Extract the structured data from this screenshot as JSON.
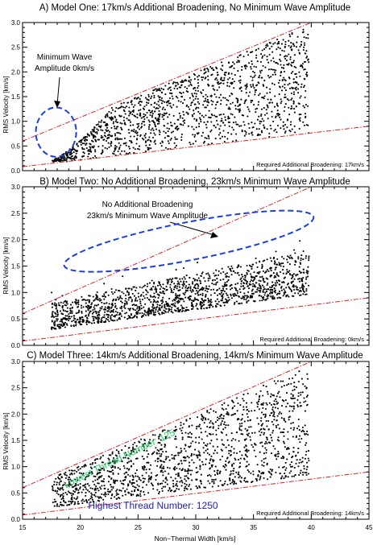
{
  "figure": {
    "xlabel": "Non−Thermal Width [km/s]",
    "x_ticks": [
      "15",
      "20",
      "25",
      "30",
      "35",
      "40",
      "45"
    ]
  },
  "chart_data": [
    {
      "type": "scatter",
      "title": "A) Model One: 17km/s Additional Broadening, No Minimum Wave Amplitude",
      "xlabel": "Non−Thermal Width [km/s]",
      "ylabel": "RMS Velocity [km/s]",
      "xlim": [
        15,
        45
      ],
      "ylim": [
        0,
        3
      ],
      "x_ticks": [
        15,
        20,
        25,
        30,
        35,
        40,
        45
      ],
      "y_ticks": [
        "0.0",
        "0.5",
        "1.0",
        "1.5",
        "2.0",
        "2.5",
        "3.0"
      ],
      "points_x_range": [
        17.5,
        39.8
      ],
      "envelope_upper": {
        "x": [
          15,
          40
        ],
        "y": [
          0.6,
          3.0
        ]
      },
      "envelope_lower": {
        "x": [
          15,
          45
        ],
        "y": [
          0.08,
          0.9
        ]
      },
      "annotation": "Minimum Wave\nAmplitude 0km/s",
      "note": "Required Additional Broadening: 17km/s",
      "ellipse": {
        "cx": 17.9,
        "cy": 0.78,
        "rx": 1.75,
        "ry": 0.5,
        "angle": 0
      }
    },
    {
      "type": "scatter",
      "title": "B) Model Two: No Additional Broadening, 23km/s Minimum Wave Amplitude",
      "xlabel": "Non−Thermal Width [km/s]",
      "ylabel": "RMS Velocity [km/s]",
      "xlim": [
        15,
        45
      ],
      "ylim": [
        0,
        3
      ],
      "x_ticks": [
        15,
        20,
        25,
        30,
        35,
        40,
        45
      ],
      "y_ticks": [
        "0.0",
        "0.5",
        "1.0",
        "1.5",
        "2.0",
        "2.5",
        "3.0"
      ],
      "points_x_range": [
        17.5,
        39.8
      ],
      "envelope_upper": {
        "x": [
          15,
          40
        ],
        "y": [
          0.6,
          3.0
        ]
      },
      "envelope_lower": {
        "x": [
          15,
          45
        ],
        "y": [
          0.08,
          0.9
        ]
      },
      "annotation": "No Additional Broadening\n23km/s Minimum Wave Amplitude",
      "note": "Required Additional Broadening: 0km/s",
      "ellipse": {
        "cx": 29.4,
        "cy": 1.97,
        "rx": 11.0,
        "ry": 0.36,
        "angle": -11
      }
    },
    {
      "type": "scatter",
      "title": "C) Model Three: 14km/s Additional Broadening, 14km/s Minimum Wave Amplitude",
      "xlabel": "Non−Thermal Width [km/s]",
      "ylabel": "RMS Velocity [km/s]",
      "xlim": [
        15,
        45
      ],
      "ylim": [
        0,
        3
      ],
      "x_ticks": [
        15,
        20,
        25,
        30,
        35,
        40,
        45
      ],
      "y_ticks": [
        "0.0",
        "0.5",
        "1.0",
        "1.5",
        "2.0",
        "2.5",
        "3.0"
      ],
      "points_x_range": [
        17.5,
        39.8
      ],
      "envelope_upper": {
        "x": [
          15,
          40
        ],
        "y": [
          0.6,
          3.0
        ]
      },
      "envelope_lower": {
        "x": [
          15,
          45
        ],
        "y": [
          0.08,
          0.9
        ]
      },
      "labels": [
        {
          "text": "Lowest Thread Number: 125",
          "color": "#22cc66",
          "x": 23.5,
          "y": 1.1,
          "angle": -26
        },
        {
          "text": "Highest Thread Number: 1250",
          "color": "#2222bb",
          "x": 26.3,
          "y": 0.2,
          "angle": 0
        }
      ],
      "note": "Required Additional Broadening: 14km/s"
    }
  ]
}
